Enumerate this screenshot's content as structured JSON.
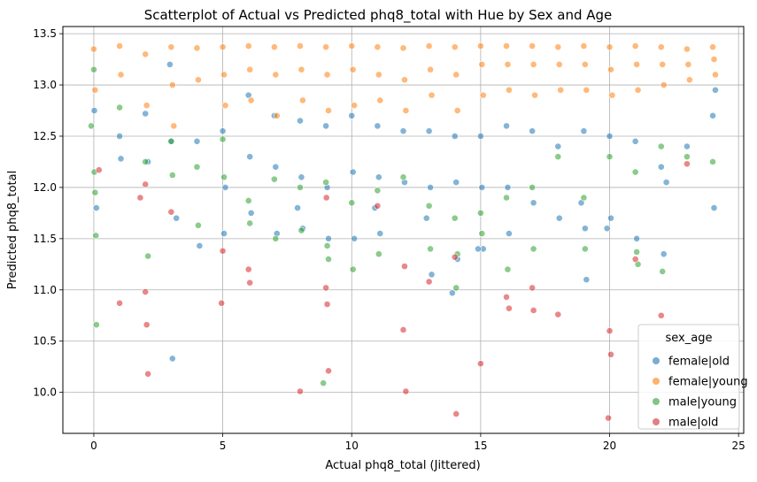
{
  "chart_data": {
    "type": "scatter",
    "title": "Scatterplot of Actual vs Predicted phq8_total with Hue by Sex and Age",
    "xlabel": "Actual phq8_total (Jittered)",
    "ylabel": "Predicted phq8_total",
    "xlim": [
      -1.2,
      25.2
    ],
    "ylim": [
      9.6,
      13.57
    ],
    "xticks": [
      0,
      5,
      10,
      15,
      20,
      25
    ],
    "yticks": [
      10.0,
      10.5,
      11.0,
      11.5,
      12.0,
      12.5,
      13.0,
      13.5
    ],
    "xtick_labels": [
      "0",
      "5",
      "10",
      "15",
      "20",
      "25"
    ],
    "ytick_labels": [
      "10.0",
      "10.5",
      "11.0",
      "11.5",
      "12.0",
      "12.5",
      "13.0",
      "13.5"
    ],
    "grid": true,
    "legend": {
      "title": "sex_age",
      "position": "lower-right",
      "entries": [
        "female|old",
        "female|young",
        "male|young",
        "male|old"
      ]
    },
    "series": [
      {
        "name": "female|old",
        "color": "#1f77b4",
        "x": [
          0.02,
          1.05,
          2.0,
          2.1,
          3.0,
          3.05,
          4.0,
          4.1,
          5.0,
          5.05,
          6.0,
          6.05,
          6.1,
          7.0,
          7.05,
          7.1,
          8.0,
          8.05,
          8.1,
          9.0,
          9.05,
          9.1,
          10.0,
          10.05,
          10.1,
          11.0,
          11.05,
          11.1,
          12.0,
          12.05,
          13.0,
          13.05,
          13.1,
          14.0,
          14.05,
          14.1,
          15.0,
          15.05,
          15.1,
          16.0,
          16.05,
          16.1,
          17.0,
          17.05,
          18.0,
          18.05,
          19.0,
          19.05,
          19.1,
          20.0,
          20.05,
          21.0,
          21.05,
          22.0,
          22.1,
          23.0,
          24.0,
          24.05,
          0.1,
          2.95,
          1.0,
          3.2,
          5.1,
          7.9,
          10.9,
          12.9,
          13.9,
          14.9,
          18.9,
          19.9,
          22.2,
          24.1
        ],
        "y": [
          12.75,
          12.28,
          12.72,
          12.25,
          12.45,
          10.33,
          12.45,
          11.43,
          12.55,
          11.55,
          12.9,
          12.3,
          11.75,
          12.7,
          12.2,
          11.55,
          12.65,
          12.1,
          11.6,
          12.6,
          12.0,
          11.5,
          12.7,
          12.15,
          11.5,
          12.6,
          12.1,
          11.55,
          12.55,
          12.05,
          12.55,
          12.0,
          11.15,
          12.5,
          12.05,
          11.3,
          12.5,
          12.0,
          11.4,
          12.6,
          12.0,
          11.55,
          12.55,
          11.85,
          12.4,
          11.7,
          12.55,
          11.6,
          11.1,
          12.5,
          11.7,
          12.45,
          11.5,
          12.2,
          11.35,
          12.4,
          12.7,
          11.8,
          11.8,
          13.2,
          12.5,
          11.7,
          12.0,
          11.8,
          11.8,
          11.7,
          10.97,
          11.4,
          11.85,
          11.6,
          12.05,
          12.95
        ],
        "size": 6
      },
      {
        "name": "female|young",
        "color": "#ff7f0e",
        "x": [
          0.0,
          0.05,
          1.0,
          1.05,
          2.0,
          2.05,
          3.0,
          3.05,
          3.1,
          4.0,
          4.05,
          5.0,
          5.05,
          5.1,
          6.0,
          6.05,
          6.1,
          7.0,
          7.05,
          7.1,
          8.0,
          8.05,
          8.1,
          9.0,
          9.05,
          9.1,
          10.0,
          10.05,
          10.1,
          11.0,
          11.05,
          11.1,
          12.0,
          12.05,
          12.1,
          13.0,
          13.05,
          13.1,
          14.0,
          14.05,
          14.1,
          15.0,
          15.05,
          15.1,
          16.0,
          16.05,
          16.1,
          17.0,
          17.05,
          17.1,
          18.0,
          18.05,
          18.1,
          19.0,
          19.05,
          19.1,
          20.0,
          20.05,
          20.1,
          21.0,
          21.05,
          21.1,
          22.0,
          22.05,
          22.1,
          23.0,
          23.05,
          23.1,
          24.0,
          24.05,
          24.1
        ],
        "y": [
          13.35,
          12.95,
          13.38,
          13.1,
          13.3,
          12.8,
          13.37,
          13.0,
          12.6,
          13.36,
          13.05,
          13.37,
          13.1,
          12.8,
          13.38,
          13.15,
          12.85,
          13.37,
          13.1,
          12.7,
          13.38,
          13.15,
          12.85,
          13.37,
          13.1,
          12.75,
          13.38,
          13.15,
          12.8,
          13.37,
          13.1,
          12.85,
          13.36,
          13.05,
          12.75,
          13.38,
          13.15,
          12.9,
          13.37,
          13.1,
          12.75,
          13.38,
          13.2,
          12.9,
          13.38,
          13.2,
          12.95,
          13.38,
          13.2,
          12.9,
          13.37,
          13.2,
          12.95,
          13.38,
          13.2,
          12.95,
          13.37,
          13.15,
          12.9,
          13.38,
          13.2,
          12.95,
          13.37,
          13.2,
          13.0,
          13.35,
          13.2,
          13.05,
          13.37,
          13.25,
          13.1
        ],
        "size": 6
      },
      {
        "name": "male|young",
        "color": "#2ca02c",
        "x": [
          -0.1,
          0.0,
          0.02,
          0.05,
          0.08,
          0.1,
          1.0,
          2.0,
          2.1,
          3.0,
          3.05,
          4.0,
          4.05,
          5.0,
          5.05,
          6.0,
          6.05,
          7.0,
          7.05,
          8.0,
          8.05,
          9.0,
          9.05,
          9.1,
          10.0,
          10.05,
          11.0,
          11.05,
          12.0,
          13.0,
          13.05,
          14.0,
          14.05,
          14.1,
          15.0,
          15.05,
          16.0,
          16.05,
          17.0,
          17.05,
          18.0,
          19.0,
          19.05,
          20.0,
          21.0,
          21.05,
          21.1,
          22.0,
          22.05,
          24.0,
          8.9,
          23.0
        ],
        "y": [
          12.6,
          13.15,
          12.15,
          11.95,
          11.53,
          10.66,
          12.78,
          12.25,
          11.33,
          12.45,
          12.12,
          12.2,
          11.63,
          12.47,
          12.1,
          11.87,
          11.65,
          12.08,
          11.5,
          12.0,
          11.58,
          12.05,
          11.43,
          11.3,
          11.85,
          11.2,
          11.97,
          11.35,
          12.1,
          11.82,
          11.4,
          11.7,
          11.02,
          11.35,
          11.75,
          11.55,
          11.9,
          11.2,
          12.0,
          11.4,
          12.3,
          11.9,
          11.4,
          12.3,
          12.15,
          11.37,
          11.25,
          12.4,
          11.18,
          12.25,
          10.09,
          12.3
        ],
        "size": 6
      },
      {
        "name": "male|old",
        "color": "#d62728",
        "x": [
          0.2,
          1.0,
          1.8,
          2.0,
          2.05,
          2.1,
          2.0,
          5.0,
          4.95,
          6.0,
          6.05,
          8.0,
          9.0,
          9.05,
          9.1,
          9.02,
          12.0,
          12.05,
          12.1,
          14.0,
          14.05,
          15.0,
          16.0,
          16.1,
          17.0,
          17.05,
          18.0,
          20.0,
          20.05,
          19.95,
          21.0,
          22.0,
          23.0,
          3.0,
          11.0,
          13.0
        ],
        "y": [
          12.17,
          10.87,
          11.9,
          10.98,
          10.66,
          10.18,
          12.03,
          11.38,
          10.87,
          11.2,
          11.07,
          10.01,
          11.02,
          10.86,
          10.21,
          11.9,
          10.61,
          11.23,
          10.01,
          11.32,
          9.79,
          10.28,
          10.93,
          10.82,
          11.02,
          10.8,
          10.76,
          10.6,
          10.37,
          9.75,
          11.3,
          10.75,
          12.23,
          11.76,
          11.82,
          11.08
        ],
        "size": 6
      }
    ]
  }
}
